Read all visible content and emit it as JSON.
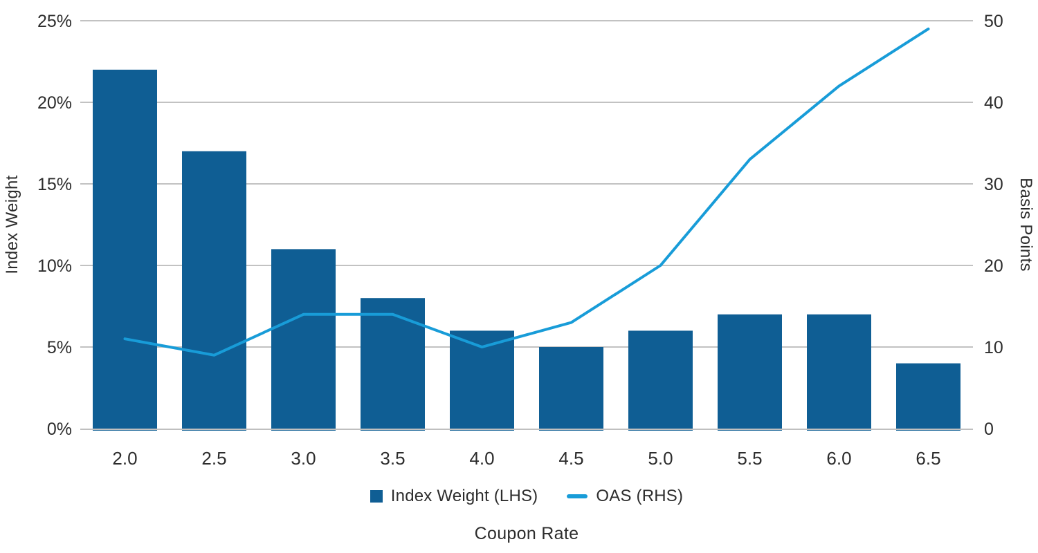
{
  "chart_data": {
    "type": "bar",
    "subtype": "combo-bar-line-dual-axis",
    "categories": [
      "2.0",
      "2.5",
      "3.0",
      "3.5",
      "4.0",
      "4.5",
      "5.0",
      "5.5",
      "6.0",
      "6.5"
    ],
    "series": [
      {
        "name": "Index Weight (LHS)",
        "type": "bar",
        "axis": "left",
        "unit": "%",
        "values": [
          22,
          17,
          11,
          8,
          6,
          5,
          6,
          7,
          7,
          4
        ]
      },
      {
        "name": "OAS (RHS)",
        "type": "line",
        "axis": "right",
        "unit": "bp",
        "values": [
          11,
          9,
          14,
          14,
          10,
          13,
          20,
          33,
          42,
          49
        ]
      }
    ],
    "left_axis": {
      "label": "Index Weight",
      "min": 0,
      "max": 25,
      "tick_step": 5,
      "tick_labels": [
        "0%",
        "5%",
        "10%",
        "15%",
        "20%",
        "25%"
      ]
    },
    "right_axis": {
      "label": "Basis Points",
      "min": 0,
      "max": 50,
      "tick_step": 10,
      "tick_labels": [
        "0",
        "10",
        "20",
        "30",
        "40",
        "50"
      ]
    },
    "x_axis": {
      "label": "Coupon Rate"
    },
    "legend": [
      {
        "label": "Index Weight (LHS)",
        "swatch": "square"
      },
      {
        "label": "OAS (RHS)",
        "swatch": "line"
      }
    ],
    "legend_position": "bottom-center",
    "grid": true,
    "colors": {
      "bar": "#0f5e94",
      "line": "#189cd8",
      "grid": "#c2c2c2",
      "baseline": "#bfbfbf",
      "text": "#2d2d2d"
    }
  }
}
